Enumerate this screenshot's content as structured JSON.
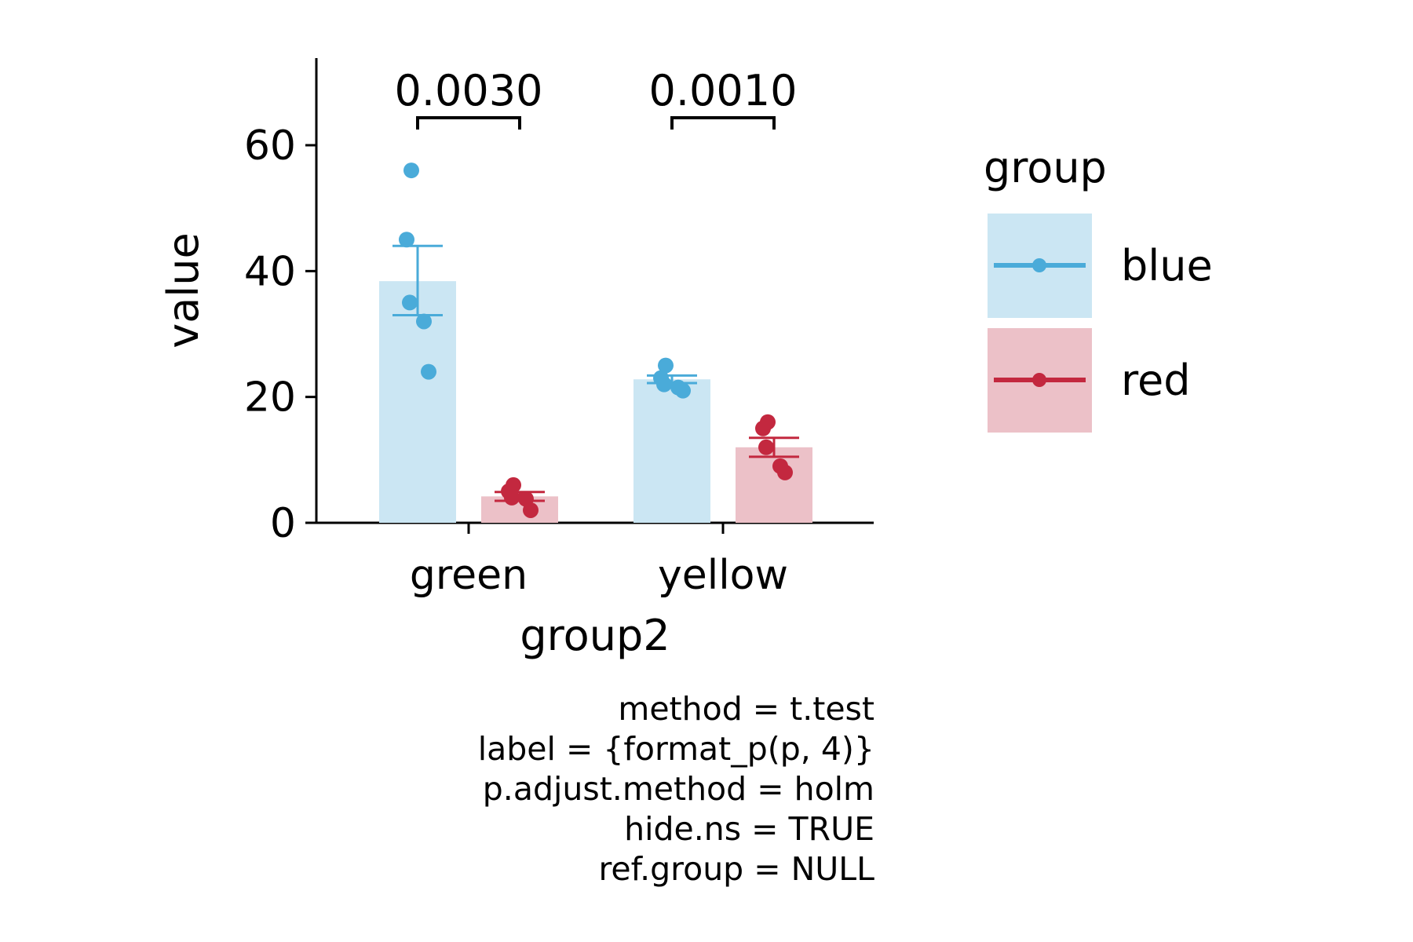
{
  "chart_data": {
    "type": "bar",
    "xlabel": "group2",
    "ylabel": "value",
    "ylim": [
      0,
      73
    ],
    "yticks": [
      0,
      20,
      40,
      60
    ],
    "categories": [
      "green",
      "yellow"
    ],
    "legend": {
      "title": "group",
      "placement": "right"
    },
    "series": [
      {
        "name": "blue",
        "color": "#4aabd9",
        "fill": "#cbe6f3",
        "values": [
          38.4,
          22.8
        ],
        "error_low": [
          33.0,
          22.2
        ],
        "error_high": [
          44.0,
          23.4
        ],
        "points": [
          [
            56,
            45,
            35,
            32,
            24
          ],
          [
            25,
            23,
            22,
            21.5,
            21
          ]
        ]
      },
      {
        "name": "red",
        "color": "#c3283f",
        "fill": "#ecc1c8",
        "values": [
          4.2,
          12.0
        ],
        "error_low": [
          3.5,
          10.5
        ],
        "error_high": [
          4.9,
          13.5
        ],
        "points": [
          [
            6,
            5,
            4,
            3.8,
            2
          ],
          [
            16,
            15,
            12,
            9,
            8
          ]
        ]
      }
    ],
    "annotations": [
      {
        "category": "green",
        "label": "0.0030",
        "y": 64
      },
      {
        "category": "yellow",
        "label": "0.0010",
        "y": 64
      }
    ],
    "caption": [
      "method = t.test",
      "label = {format_p(p, 4)}",
      "p.adjust.method = holm",
      "hide.ns = TRUE",
      "ref.group = NULL"
    ]
  }
}
